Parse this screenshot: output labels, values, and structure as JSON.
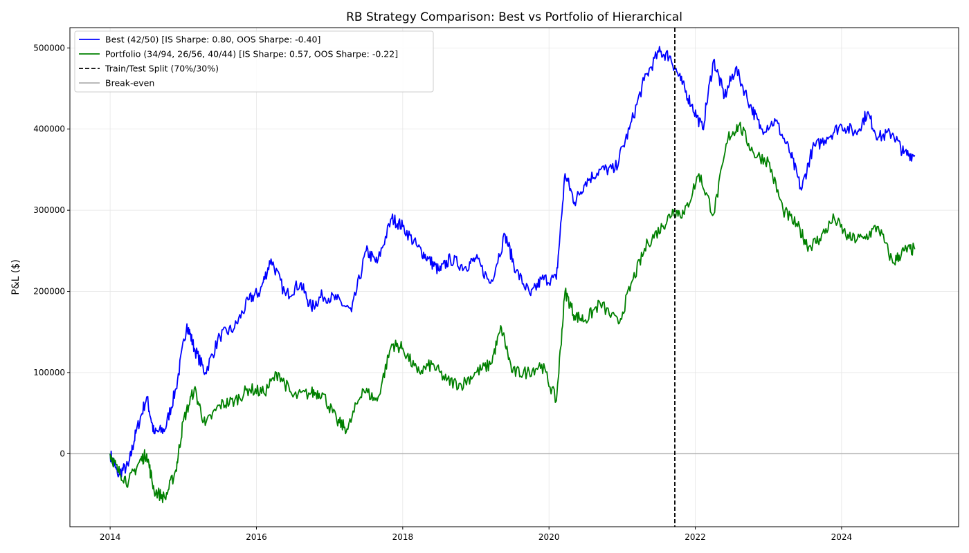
{
  "chart_data": {
    "type": "line",
    "title": "RB Strategy Comparison: Best vs Portfolio of Hierarchical",
    "xlabel": "",
    "ylabel": "P&L ($)",
    "xlim": [
      2013.45,
      2025.6
    ],
    "ylim": [
      -90000,
      525000
    ],
    "x_ticks": [
      2014,
      2016,
      2018,
      2020,
      2022,
      2024
    ],
    "x_tick_labels": [
      "2014",
      "2016",
      "2018",
      "2020",
      "2022",
      "2024"
    ],
    "y_ticks": [
      0,
      100000,
      200000,
      300000,
      400000,
      500000
    ],
    "y_tick_labels": [
      "0",
      "100000",
      "200000",
      "300000",
      "400000",
      "500000"
    ],
    "grid": true,
    "legend_position": "top-left",
    "series": [
      {
        "name": "Best (42/50) [IS Sharpe: 0.80, OOS Sharpe: -0.40]",
        "color": "#0000ff",
        "x": [
          2014.0,
          2014.1,
          2014.25,
          2014.35,
          2014.5,
          2014.6,
          2014.75,
          2014.9,
          2015.05,
          2015.15,
          2015.3,
          2015.5,
          2015.7,
          2015.9,
          2016.05,
          2016.2,
          2016.4,
          2016.6,
          2016.75,
          2016.9,
          2017.1,
          2017.3,
          2017.5,
          2017.65,
          2017.85,
          2018.0,
          2018.2,
          2018.35,
          2018.5,
          2018.65,
          2018.85,
          2019.0,
          2019.2,
          2019.4,
          2019.55,
          2019.75,
          2019.9,
          2020.1,
          2020.22,
          2020.35,
          2020.5,
          2020.7,
          2020.9,
          2021.1,
          2021.3,
          2021.5,
          2021.65,
          2021.8,
          2021.95,
          2022.1,
          2022.25,
          2022.4,
          2022.55,
          2022.75,
          2022.9,
          2023.1,
          2023.3,
          2023.45,
          2023.6,
          2023.8,
          2024.0,
          2024.2,
          2024.35,
          2024.5,
          2024.7,
          2024.85,
          2025.0
        ],
        "values": [
          0,
          -25000,
          -15000,
          25000,
          70000,
          25000,
          30000,
          80000,
          160000,
          130000,
          100000,
          145000,
          155000,
          190000,
          200000,
          240000,
          195000,
          210000,
          180000,
          195000,
          190000,
          175000,
          250000,
          235000,
          290000,
          280000,
          255000,
          240000,
          225000,
          240000,
          230000,
          240000,
          210000,
          270000,
          225000,
          195000,
          215000,
          215000,
          345000,
          310000,
          335000,
          350000,
          350000,
          400000,
          460000,
          495000,
          490000,
          460000,
          430000,
          400000,
          485000,
          440000,
          475000,
          430000,
          400000,
          410000,
          370000,
          325000,
          375000,
          390000,
          405000,
          395000,
          420000,
          390000,
          395000,
          370000,
          368000
        ]
      },
      {
        "name": "Portfolio (34/94, 26/56, 40/44) [IS Sharpe: 0.57, OOS Sharpe: -0.22]",
        "color": "#008000",
        "x": [
          2014.0,
          2014.1,
          2014.25,
          2014.4,
          2014.5,
          2014.6,
          2014.75,
          2014.9,
          2015.0,
          2015.15,
          2015.3,
          2015.5,
          2015.7,
          2015.9,
          2016.1,
          2016.3,
          2016.5,
          2016.75,
          2016.9,
          2017.1,
          2017.25,
          2017.45,
          2017.65,
          2017.85,
          2018.0,
          2018.2,
          2018.4,
          2018.6,
          2018.8,
          2019.0,
          2019.2,
          2019.35,
          2019.5,
          2019.7,
          2019.9,
          2020.1,
          2020.22,
          2020.35,
          2020.5,
          2020.7,
          2020.95,
          2021.15,
          2021.35,
          2021.55,
          2021.7,
          2021.85,
          2022.05,
          2022.25,
          2022.45,
          2022.6,
          2022.8,
          2023.0,
          2023.2,
          2023.4,
          2023.55,
          2023.7,
          2023.9,
          2024.1,
          2024.3,
          2024.5,
          2024.7,
          2024.85,
          2025.0
        ],
        "values": [
          0,
          -20000,
          -35000,
          -10000,
          0,
          -45000,
          -55000,
          -20000,
          40000,
          80000,
          35000,
          60000,
          65000,
          80000,
          75000,
          100000,
          70000,
          75000,
          75000,
          40000,
          30000,
          80000,
          65000,
          135000,
          130000,
          100000,
          110000,
          90000,
          85000,
          100000,
          110000,
          155000,
          100000,
          100000,
          110000,
          65000,
          200000,
          170000,
          165000,
          185000,
          160000,
          215000,
          260000,
          280000,
          300000,
          295000,
          345000,
          295000,
          390000,
          405000,
          370000,
          360000,
          300000,
          280000,
          255000,
          265000,
          290000,
          265000,
          265000,
          280000,
          235000,
          250000,
          252000
        ]
      }
    ],
    "reference_lines": [
      {
        "name": "Train/Test Split (70%/30%)",
        "orientation": "vertical",
        "x": 2021.72,
        "color": "#000000",
        "style": "dashed"
      },
      {
        "name": "Break-even",
        "orientation": "horizontal",
        "y": 0,
        "color": "#b0b0b0",
        "style": "solid"
      }
    ]
  }
}
